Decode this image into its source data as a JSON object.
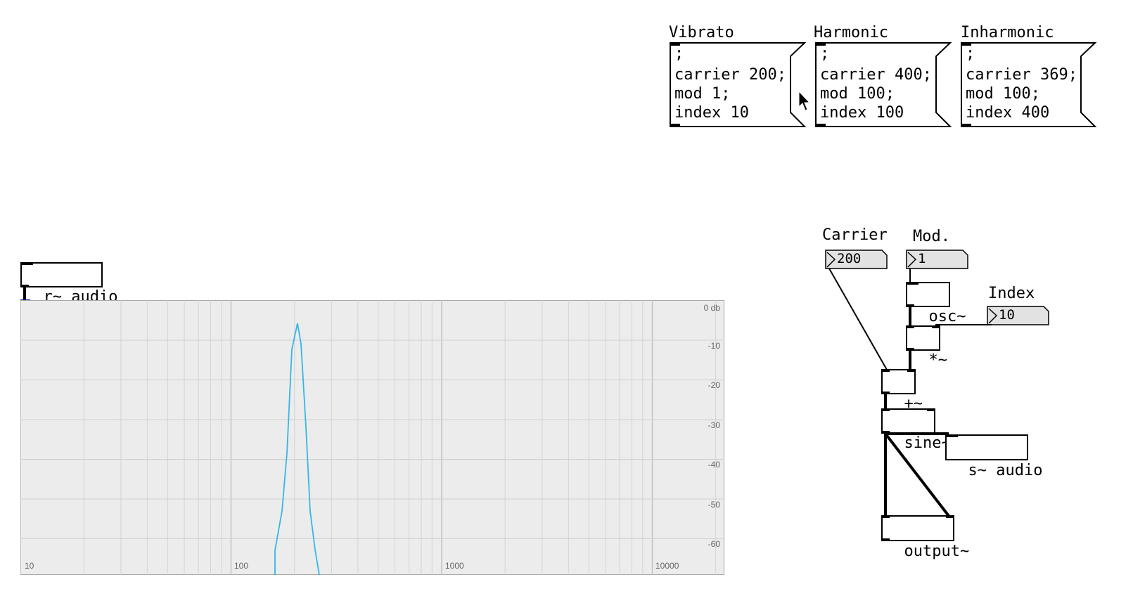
{
  "messages": [
    {
      "title": "Vibrato",
      "lines": [
        ";",
        "carrier 200;",
        "mod 1;",
        "index 10"
      ]
    },
    {
      "title": "Harmonic",
      "lines": [
        ";",
        "carrier 400;",
        "mod 100;",
        "index 100"
      ]
    },
    {
      "title": "Inharmonic",
      "lines": [
        ";",
        "carrier 369;",
        "mod 100;",
        "index 400"
      ]
    }
  ],
  "labels": {
    "carrier": "Carrier",
    "mod": "Mod.",
    "index": "Index"
  },
  "numbers": {
    "carrier": "200",
    "mod": "1",
    "index": "10"
  },
  "objects": {
    "receive": "r~ audio",
    "osc": "osc~",
    "mult": "*~",
    "add": "+~",
    "sine": "sine~",
    "send": "s~ audio",
    "output": "output~"
  },
  "spectrum": {
    "y_ticks": [
      "0 db",
      "-10",
      "-20",
      "-30",
      "-40",
      "-50",
      "-60"
    ],
    "x_ticks": [
      "10",
      "100",
      "1000",
      "10000"
    ],
    "line_color": "#35b6e6",
    "background": "#ececec",
    "peak_frequency": 200
  }
}
